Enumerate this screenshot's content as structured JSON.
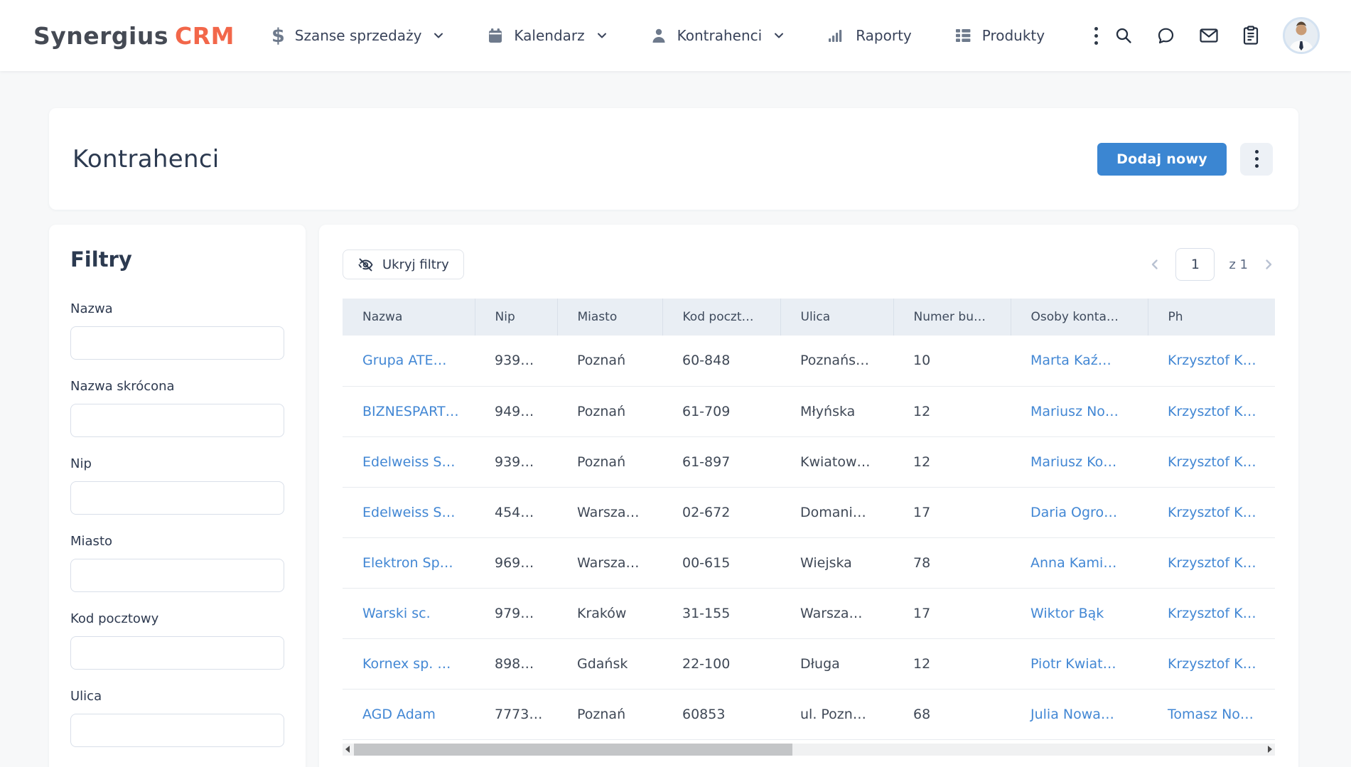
{
  "navbar": {
    "logo": {
      "part1": "Synergius",
      "part2": "CRM"
    },
    "items": [
      {
        "label": "Szanse sprzedaży",
        "icon": "dollar-icon",
        "chevron": true
      },
      {
        "label": "Kalendarz",
        "icon": "calendar-icon",
        "chevron": true
      },
      {
        "label": "Kontrahenci",
        "icon": "person-icon",
        "chevron": true
      },
      {
        "label": "Raporty",
        "icon": "bar-chart-icon",
        "chevron": false
      },
      {
        "label": "Produkty",
        "icon": "grid-icon",
        "chevron": false
      }
    ],
    "right_icons": [
      "search-icon",
      "chat-icon",
      "mail-icon",
      "clipboard-icon",
      "avatar"
    ]
  },
  "page": {
    "title": "Kontrahenci",
    "add_button": "Dodaj nowy"
  },
  "filters": {
    "title": "Filtry",
    "fields": [
      {
        "label": "Nazwa",
        "value": ""
      },
      {
        "label": "Nazwa skrócona",
        "value": ""
      },
      {
        "label": "Nip",
        "value": ""
      },
      {
        "label": "Miasto",
        "value": ""
      },
      {
        "label": "Kod pocztowy",
        "value": ""
      },
      {
        "label": "Ulica",
        "value": ""
      }
    ]
  },
  "toolbar": {
    "hide_filters_label": "Ukryj filtry"
  },
  "pagination": {
    "current_page": "1",
    "of_label": "z 1"
  },
  "table": {
    "headers": [
      "Nazwa",
      "Nip",
      "Miasto",
      "Kod poczt…",
      "Ulica",
      "Numer bu…",
      "Osoby konta…",
      "Ph"
    ],
    "link_columns": [
      0,
      6,
      7
    ],
    "rows": [
      [
        "Grupa ATE…",
        "939…",
        "Poznań",
        "60-848",
        "Poznańs…",
        "10",
        "Marta Kaź…",
        "Krzysztof K…"
      ],
      [
        "BIZNESPART…",
        "949…",
        "Poznań",
        "61-709",
        "Młyńska",
        "12",
        "Mariusz No…",
        "Krzysztof K…"
      ],
      [
        "Edelweiss S…",
        "939…",
        "Poznań",
        "61-897",
        "Kwiatow…",
        "12",
        "Mariusz Ko…",
        "Krzysztof K…"
      ],
      [
        "Edelweiss S…",
        "454…",
        "Warsza…",
        "02-672",
        "Domani…",
        "17",
        "Daria Ogro…",
        "Krzysztof K…"
      ],
      [
        "Elektron Sp…",
        "969…",
        "Warsza…",
        "00-615",
        "Wiejska",
        "78",
        "Anna Kami…",
        "Krzysztof K…"
      ],
      [
        "Warski sc.",
        "979…",
        "Kraków",
        "31-155",
        "Warsza…",
        "17",
        "Wiktor Bąk",
        "Krzysztof K…"
      ],
      [
        "Kornex sp. …",
        "898…",
        "Gdańsk",
        "22-100",
        "Długa",
        "12",
        "Piotr Kwiat…",
        "Krzysztof K…"
      ],
      [
        "AGD Adam",
        "7773…",
        "Poznań",
        "60853",
        "ul. Pozn…",
        "68",
        "Julia Nowa…",
        "Tomasz No…"
      ]
    ]
  },
  "colors": {
    "accent_blue": "#3b86d2",
    "link_blue": "#4287d4",
    "logo_orange": "#f2674a",
    "logo_dark": "#454a54",
    "table_header_bg": "#e9eef4",
    "page_bg": "#f7f8f9"
  }
}
